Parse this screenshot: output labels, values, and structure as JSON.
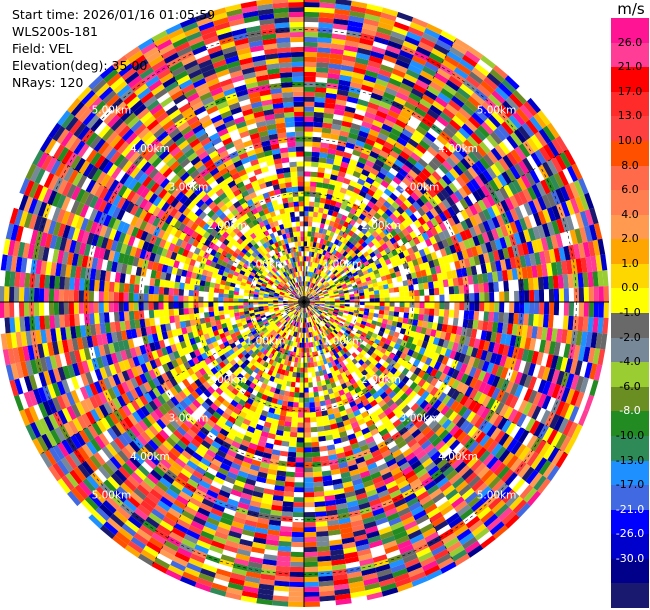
{
  "info": {
    "start_time": "Start time: 2026/01/16 01:05:59",
    "instrument": "WLS200s-181",
    "field": "Field: VEL",
    "elevation": "Elevation(deg): 35.00",
    "nrays": "NRays: 120"
  },
  "chart_data": {
    "type": "heatmap",
    "projection": "polar-ppi",
    "field": "VEL",
    "units": "m/s",
    "nrays": 120,
    "range_rings_km": [
      1,
      2,
      3,
      4,
      5
    ],
    "range_ring_labels": [
      "1.00km",
      "2.00km",
      "3.00km",
      "4.00km",
      "5.00km"
    ],
    "max_range_km": 5.6,
    "colorbar": {
      "title": "m/s",
      "ticks": [
        "26.0",
        "21.0",
        "17.0",
        "13.0",
        "10.0",
        "8.0",
        "6.0",
        "4.0",
        "2.0",
        "1.0",
        "0.0",
        "-1.0",
        "-2.0",
        "-4.0",
        "-6.0",
        "-8.0",
        "-10.0",
        "-13.0",
        "-17.0",
        "-21.0",
        "-26.0",
        "-30.0"
      ],
      "colors": [
        "#ff1493",
        "#ff3c96",
        "#ff0000",
        "#ff2a2a",
        "#ff4040",
        "#ff5000",
        "#ff6a4a",
        "#ff7f50",
        "#ff9a50",
        "#ffa500",
        "#ffd700",
        "#ffff00",
        "#696969",
        "#778899",
        "#9acd32",
        "#6b8e23",
        "#228b22",
        "#2e8b57",
        "#1e90ff",
        "#4169e1",
        "#0000ff",
        "#0000cd",
        "#00008b",
        "#191970"
      ]
    }
  }
}
